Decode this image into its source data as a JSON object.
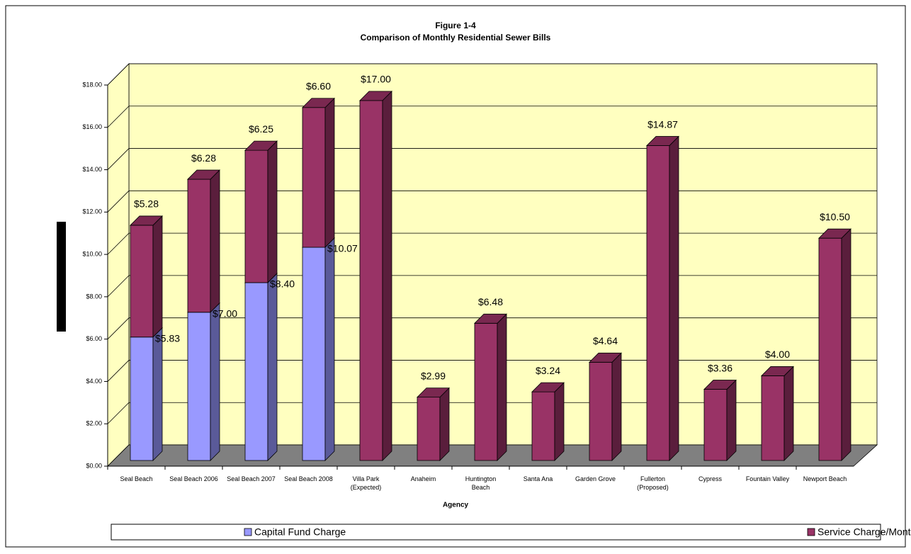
{
  "chart_data": {
    "type": "bar3d_stacked",
    "title": "Figure 1-4",
    "subtitle": "Comparison of Monthly Residential Sewer Bills",
    "x_label": "Agency",
    "categories": [
      "Seal Beach",
      "Seal Beach 2006",
      "Seal Beach 2007",
      "Seal Beach 2008",
      "Villa Park\n(Expected)",
      "Anaheim",
      "Huntington\nBeach",
      "Santa Ana",
      "Garden Grove",
      "Fullerton\n(Proposed)",
      "Cypress",
      "Fountain Valley",
      "Newport Beach"
    ],
    "series": [
      {
        "name": "Capital Fund Charge",
        "color": "#9999ff",
        "side": "#5a5a99",
        "top": "#b8b8ff",
        "values": [
          5.83,
          7.0,
          8.4,
          10.07,
          null,
          null,
          null,
          null,
          null,
          null,
          null,
          null,
          null
        ],
        "value_labels": [
          "$5.83",
          "$7.00",
          "$8.40",
          "$10.07",
          null,
          null,
          null,
          null,
          null,
          null,
          null,
          null,
          null
        ]
      },
      {
        "name": "Service Charge/Monthly Bill",
        "color": "#993366",
        "side": "#5a1e3c",
        "top": "#7a2850",
        "values": [
          5.28,
          6.28,
          6.25,
          6.6,
          17.0,
          2.99,
          6.48,
          3.24,
          4.64,
          14.87,
          3.36,
          4.0,
          10.5
        ],
        "value_labels": [
          "$5.28",
          "$6.28",
          "$6.25",
          "$6.60",
          "$17.00",
          "$2.99",
          "$6.48",
          "$3.24",
          "$4.64",
          "$14.87",
          "$3.36",
          "$4.00",
          "$10.50"
        ]
      }
    ],
    "ylim": [
      0,
      18
    ],
    "yticks": [
      {
        "value": 0,
        "label": "$0.00"
      },
      {
        "value": 2,
        "label": "$2.00"
      },
      {
        "value": 4,
        "label": "$4.00"
      },
      {
        "value": 6,
        "label": "$6.00"
      },
      {
        "value": 8,
        "label": "$8.00"
      },
      {
        "value": 10,
        "label": "$10.00"
      },
      {
        "value": 12,
        "label": "$12.00"
      },
      {
        "value": 14,
        "label": "$14.00"
      },
      {
        "value": 16,
        "label": "$16.00"
      },
      {
        "value": 18,
        "label": "$18.00"
      }
    ],
    "grid": true,
    "legend": "bottom"
  }
}
